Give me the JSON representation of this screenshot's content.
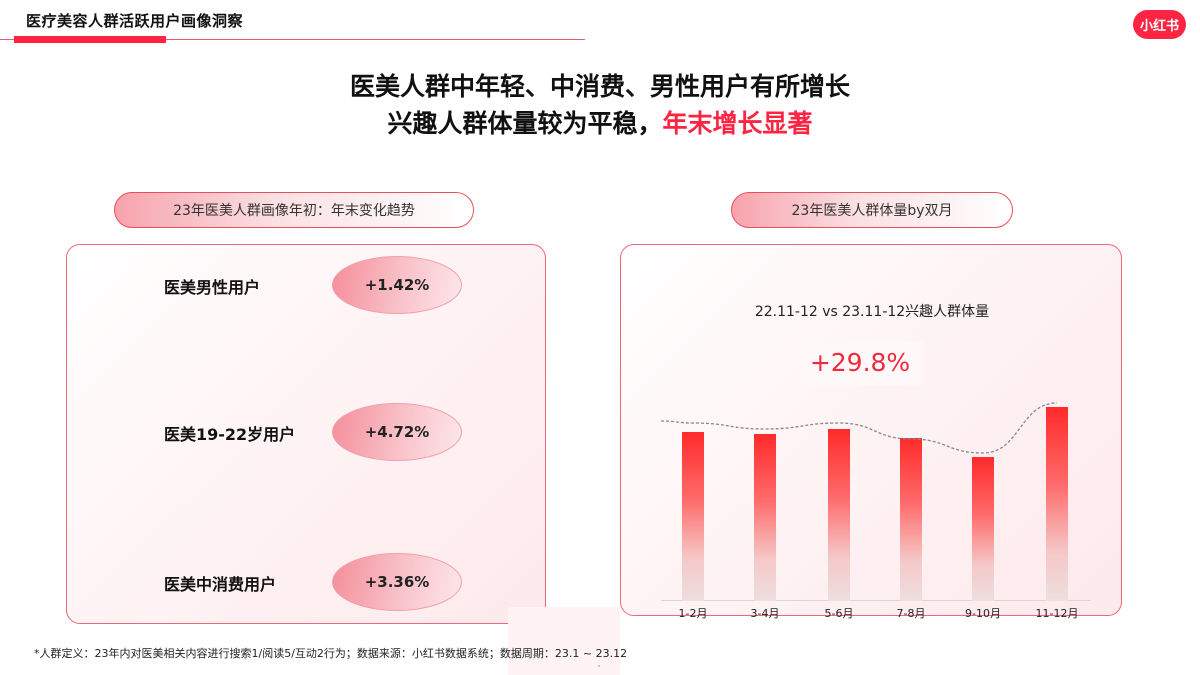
{
  "header": {
    "title": "医疗美容人群活跃用户画像洞察",
    "brand": "小红书",
    "accent_color": "#ff2442"
  },
  "headline": {
    "line1": "医美人群中年轻、中消费、男性用户有所增长",
    "line2_prefix": "兴趣人群体量较为平稳，",
    "line2_highlight": "年末增长显著"
  },
  "left_section": {
    "label": "23年医美人群画像年初：年末变化趋势",
    "metrics": [
      {
        "label": "医美男性用户",
        "value": "+1.42%"
      },
      {
        "label": "医美19-22岁用户",
        "value": "+4.72%"
      },
      {
        "label": "医美中消费用户",
        "value": "+3.36%"
      }
    ]
  },
  "right_section": {
    "label": "23年医美人群体量by双月",
    "subtitle": "22.11-12 vs 23.11-12兴趣人群体量",
    "kpi": "+29.8%"
  },
  "chart_data": {
    "type": "bar",
    "title": "23年医美人群体量by双月",
    "subtitle": "22.11-12 vs 23.11-12兴趣人群体量",
    "annotation": "+29.8%",
    "categories": [
      "1-2月",
      "3-4月",
      "5-6月",
      "7-8月",
      "9-10月",
      "11-12月"
    ],
    "values": [
      169,
      167,
      172,
      163,
      144,
      194
    ],
    "value_note": "relative bar heights (no y-axis shown)",
    "trend_line": {
      "style": "dashed",
      "color": "#888888",
      "values": [
        178,
        172,
        178,
        162,
        148,
        198
      ]
    },
    "xlabel": "",
    "ylabel": "",
    "grid": false,
    "legend": "none",
    "bar_color_top": "#ff2a2a",
    "bar_color_bottom": "#eedede"
  },
  "footnote": "*人群定义：23年内对医美相关内容进行搜索1/阅读5/互动2行为；数据来源：小红书数据系统；数据周期：23.1 ~ 23.12"
}
